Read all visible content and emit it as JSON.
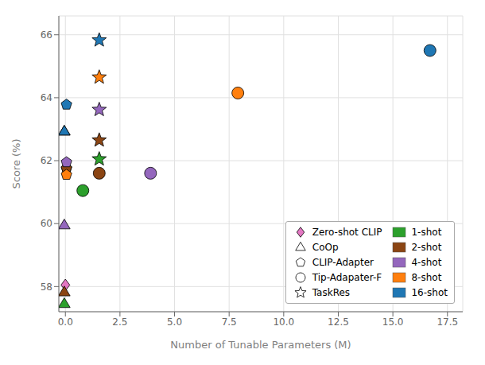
{
  "chart_data": {
    "type": "scatter",
    "xlabel": "Number of Tunable Parameters (M)",
    "ylabel": "Score (%)",
    "xlim": [
      -0.3,
      18.2
    ],
    "ylim": [
      57.2,
      66.6
    ],
    "xticks": [
      {
        "value": 0.0,
        "label": "0.0"
      },
      2.5,
      {
        "value": 5.0,
        "label": "5.0"
      },
      7.5,
      {
        "value": 10.0,
        "label": "10.0"
      },
      12.5,
      {
        "value": 15.0,
        "label": "15.0"
      },
      17.5
    ],
    "yticks": [
      58,
      60,
      62,
      64,
      66
    ],
    "grid": true,
    "legend": "lower right",
    "series": [
      {
        "name": "Zero-shot CLIP",
        "marker": "diamond",
        "color": "#e377c2",
        "x": [
          0.0
        ],
        "y": [
          58.05
        ],
        "colors": [
          "#e377c2"
        ]
      },
      {
        "name": "CoOp",
        "marker": "triangle",
        "color": "white",
        "x": [
          -0.05,
          -0.05,
          -0.05,
          -0.05,
          -0.05
        ],
        "y": [
          57.45,
          57.82,
          59.95,
          62.93,
          62.93
        ],
        "colors": [
          "#2ca02c",
          "#8B4513",
          "#9467bd",
          "#ff7f0e",
          "#1f77b4"
        ]
      },
      {
        "name": "CLIP-Adapter",
        "marker": "pentagon",
        "color": "white",
        "x": [
          0.05,
          0.05,
          0.05,
          0.05,
          0.05
        ],
        "y": [
          61.75,
          61.75,
          61.95,
          61.55,
          63.78
        ],
        "colors": [
          "#2ca02c",
          "#8B4513",
          "#9467bd",
          "#ff7f0e",
          "#1f77b4"
        ]
      },
      {
        "name": "Tip-Adapater-F",
        "marker": "circle",
        "color": "white",
        "x": [
          0.8,
          1.55,
          3.9,
          7.9,
          16.7
        ],
        "y": [
          61.05,
          61.6,
          61.6,
          64.15,
          65.5
        ],
        "colors": [
          "#2ca02c",
          "#8B4513",
          "#9467bd",
          "#ff7f0e",
          "#1f77b4"
        ]
      },
      {
        "name": "TaskRes",
        "marker": "star",
        "color": "white",
        "x": [
          1.55,
          1.55,
          1.55,
          1.55,
          1.55
        ],
        "y": [
          62.05,
          62.65,
          63.62,
          64.65,
          65.83
        ],
        "colors": [
          "#2ca02c",
          "#8B4513",
          "#9467bd",
          "#ff7f0e",
          "#1f77b4"
        ]
      }
    ],
    "shots": [
      {
        "name": "1-shot",
        "color": "#2ca02c"
      },
      {
        "name": "2-shot",
        "color": "#8B4513"
      },
      {
        "name": "4-shot",
        "color": "#9467bd"
      },
      {
        "name": "8-shot",
        "color": "#ff7f0e"
      },
      {
        "name": "16-shot",
        "color": "#1f77b4"
      }
    ]
  }
}
